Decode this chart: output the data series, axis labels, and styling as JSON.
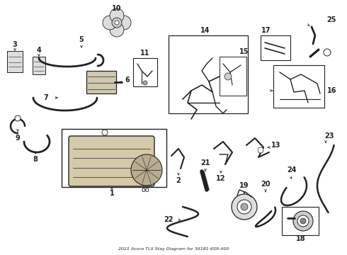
{
  "title": "2021 Acura TLX Stay Diagram for 36181-6S9-A00",
  "bg_color": "#ffffff",
  "lc": "#222222",
  "fc_light": "#e8e8e8",
  "fc_mid": "#cccccc",
  "fc_tan": "#d4c9a8"
}
